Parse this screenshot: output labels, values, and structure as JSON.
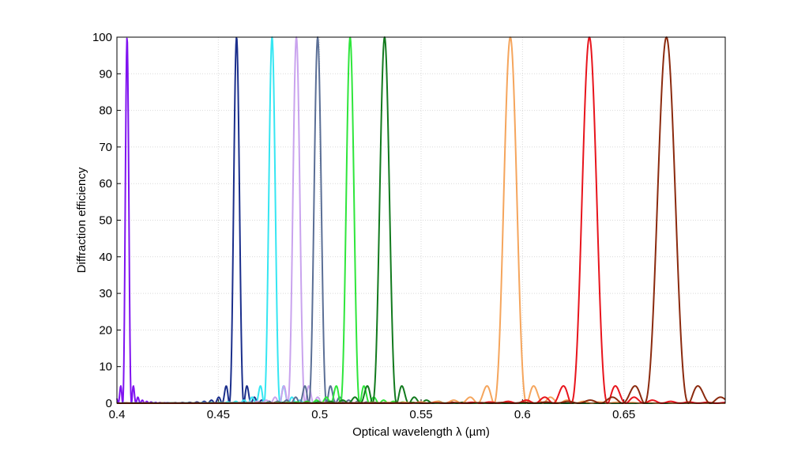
{
  "chart_data": {
    "type": "line",
    "title": "",
    "xlabel": "Optical wavelength λ (µm)",
    "ylabel": "Diffraction efficiency",
    "xlim": [
      0.4,
      0.7
    ],
    "ylim": [
      0,
      100
    ],
    "grid": true,
    "x_ticks": [
      "0.4",
      "0.45",
      "0.5",
      "0.55",
      "0.6",
      "0.65"
    ],
    "y_ticks": [
      "0",
      "10",
      "20",
      "30",
      "40",
      "50",
      "60",
      "70",
      "80",
      "90",
      "100"
    ],
    "series": [
      {
        "peak_wavelength": 0.405,
        "peak_efficiency": 100,
        "first_sidelobe_offset": 0.0031,
        "color": "#7f12f0"
      },
      {
        "peak_wavelength": 0.459,
        "peak_efficiency": 100,
        "first_sidelobe_offset": 0.0051,
        "color": "#1b2f8c"
      },
      {
        "peak_wavelength": 0.4765,
        "peak_efficiency": 100,
        "first_sidelobe_offset": 0.0057,
        "color": "#35e6f2"
      },
      {
        "peak_wavelength": 0.4885,
        "peak_efficiency": 100,
        "first_sidelobe_offset": 0.0061,
        "color": "#c9a3ee"
      },
      {
        "peak_wavelength": 0.499,
        "peak_efficiency": 100,
        "first_sidelobe_offset": 0.0063,
        "color": "#5b6f96"
      },
      {
        "peak_wavelength": 0.515,
        "peak_efficiency": 100,
        "first_sidelobe_offset": 0.0068,
        "color": "#2ee63b"
      },
      {
        "peak_wavelength": 0.532,
        "peak_efficiency": 100,
        "first_sidelobe_offset": 0.0085,
        "color": "#127a1e"
      },
      {
        "peak_wavelength": 0.594,
        "peak_efficiency": 100,
        "first_sidelobe_offset": 0.0115,
        "color": "#f5a55c"
      },
      {
        "peak_wavelength": 0.633,
        "peak_efficiency": 100,
        "first_sidelobe_offset": 0.0128,
        "color": "#e8141c"
      },
      {
        "peak_wavelength": 0.671,
        "peak_efficiency": 100,
        "first_sidelobe_offset": 0.0155,
        "color": "#8b2a0e"
      }
    ]
  }
}
